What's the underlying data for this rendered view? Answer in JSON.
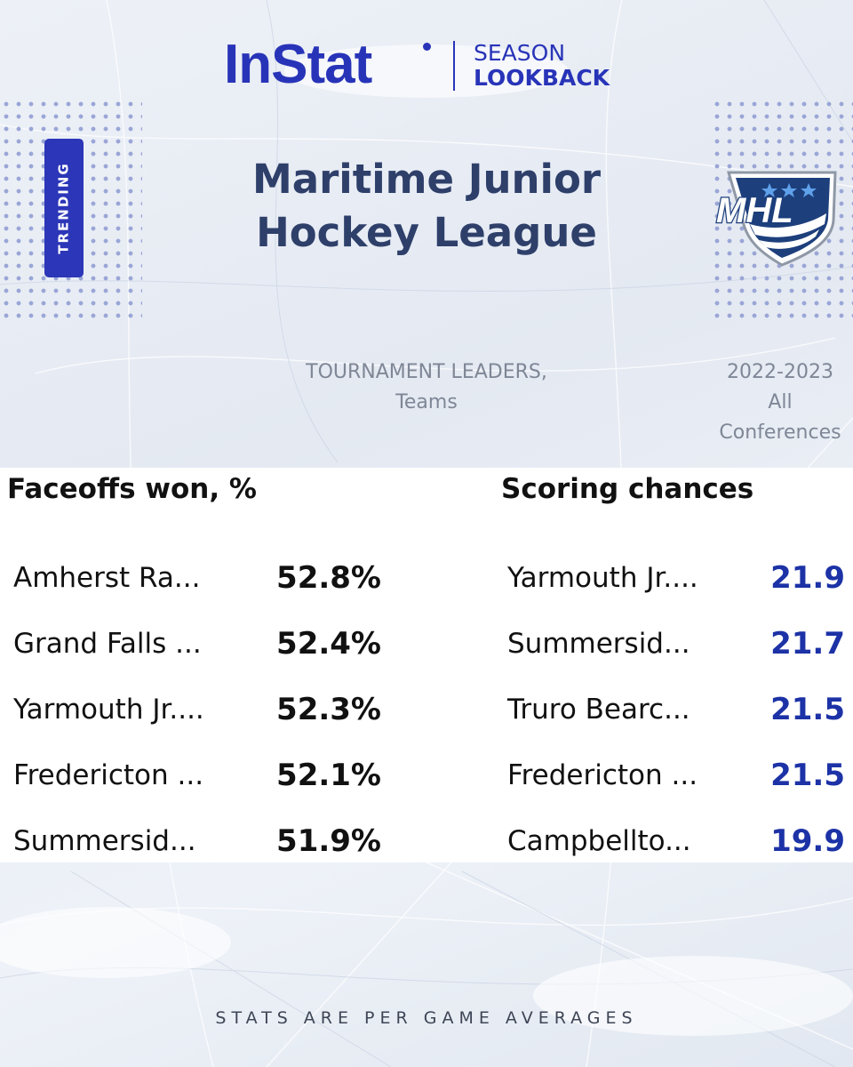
{
  "brand": {
    "logo_text": "InStat",
    "season_line1": "SEASON",
    "season_line2": "LOOKBACK"
  },
  "badge": "TRENDING",
  "league": {
    "title_line1": "Maritime Junior",
    "title_line2": "Hockey League",
    "logo_text": "MHL"
  },
  "subheading": {
    "line1": "TOURNAMENT LEADERS,",
    "line2": "Teams"
  },
  "season_info": {
    "line1": "2022-2023",
    "line2": "All",
    "line3": "Conferences"
  },
  "faceoffs": {
    "title": "Faceoffs won, %",
    "rows": [
      {
        "team": "Amherst Ra...",
        "value": "52.8%"
      },
      {
        "team": "Grand Falls ...",
        "value": "52.4%"
      },
      {
        "team": "Yarmouth Jr....",
        "value": "52.3%"
      },
      {
        "team": "Fredericton ...",
        "value": "52.1%"
      },
      {
        "team": "Summersid...",
        "value": "51.9%"
      }
    ]
  },
  "scoring": {
    "title": "Scoring chances",
    "rows": [
      {
        "team": "Yarmouth Jr....",
        "value": "21.9"
      },
      {
        "team": "Summersid...",
        "value": "21.7"
      },
      {
        "team": "Truro Bearc...",
        "value": "21.5"
      },
      {
        "team": "Fredericton ...",
        "value": "21.5"
      },
      {
        "team": "Campbellto...",
        "value": "19.9"
      }
    ]
  },
  "footer": "STATS ARE PER GAME AVERAGES",
  "colors": {
    "brand_blue": "#2834b8",
    "title_navy": "#2e3f6a",
    "value_blue": "#1c32a6"
  }
}
